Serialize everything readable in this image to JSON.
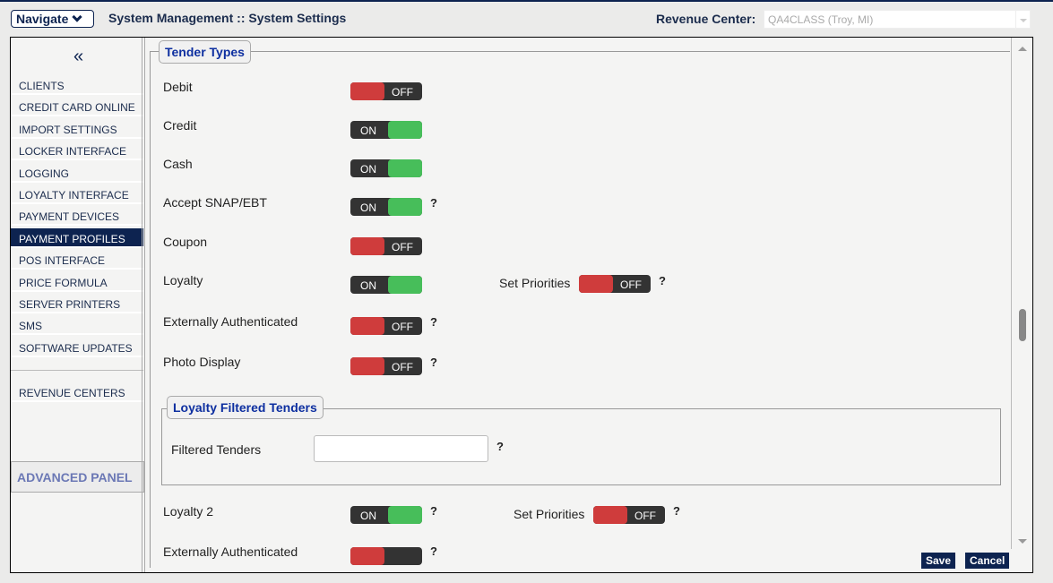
{
  "header": {
    "navigate": "Navigate",
    "title": "System Management :: System Settings",
    "revenue_center_label": "Revenue Center:",
    "revenue_center_value": "QA4CLASS (Troy, MI)"
  },
  "sidebar": {
    "collapse_icon": "«",
    "items": [
      "CLIENTS",
      "CREDIT CARD ONLINE",
      "IMPORT SETTINGS",
      "LOCKER INTERFACE",
      "LOGGING",
      "LOYALTY INTERFACE",
      "PAYMENT DEVICES",
      "PAYMENT PROFILES",
      "POS INTERFACE",
      "PRICE FORMULA",
      "SERVER PRINTERS",
      "SMS",
      "SOFTWARE UPDATES"
    ],
    "active": "PAYMENT PROFILES",
    "revenue_centers": "REVENUE CENTERS",
    "advanced_panel": "ADVANCED PANEL"
  },
  "tender_types": {
    "legend": "Tender Types",
    "rows": [
      {
        "label": "Debit",
        "state": "OFF",
        "help": ""
      },
      {
        "label": "Credit",
        "state": "ON",
        "help": ""
      },
      {
        "label": "Cash",
        "state": "ON",
        "help": ""
      },
      {
        "label": "Accept SNAP/EBT",
        "state": "ON",
        "help": "?"
      },
      {
        "label": "Coupon",
        "state": "OFF",
        "help": ""
      },
      {
        "label": "Loyalty",
        "state": "ON",
        "help": ""
      },
      {
        "label": "Externally Authenticated",
        "state": "OFF",
        "help": "?"
      },
      {
        "label": "Photo Display",
        "state": "OFF",
        "help": "?"
      }
    ],
    "loyalty_set_priorities": {
      "label": "Set Priorities",
      "state": "OFF",
      "help": "?"
    }
  },
  "loyalty_filtered": {
    "legend": "Loyalty Filtered Tenders",
    "field_label": "Filtered Tenders",
    "value": "",
    "help": "?"
  },
  "loyalty2": {
    "label": "Loyalty 2",
    "state": "ON",
    "help": "?",
    "set_priorities": {
      "label": "Set Priorities",
      "state": "OFF",
      "help": "?"
    },
    "ext_auth_label": "Externally Authenticated",
    "ext_auth_help": "?"
  },
  "buttons": {
    "save": "Save",
    "cancel": "Cancel"
  },
  "colors": {
    "navy": "#0d2350",
    "on": "#47be5a",
    "off": "#cf3c3c"
  }
}
